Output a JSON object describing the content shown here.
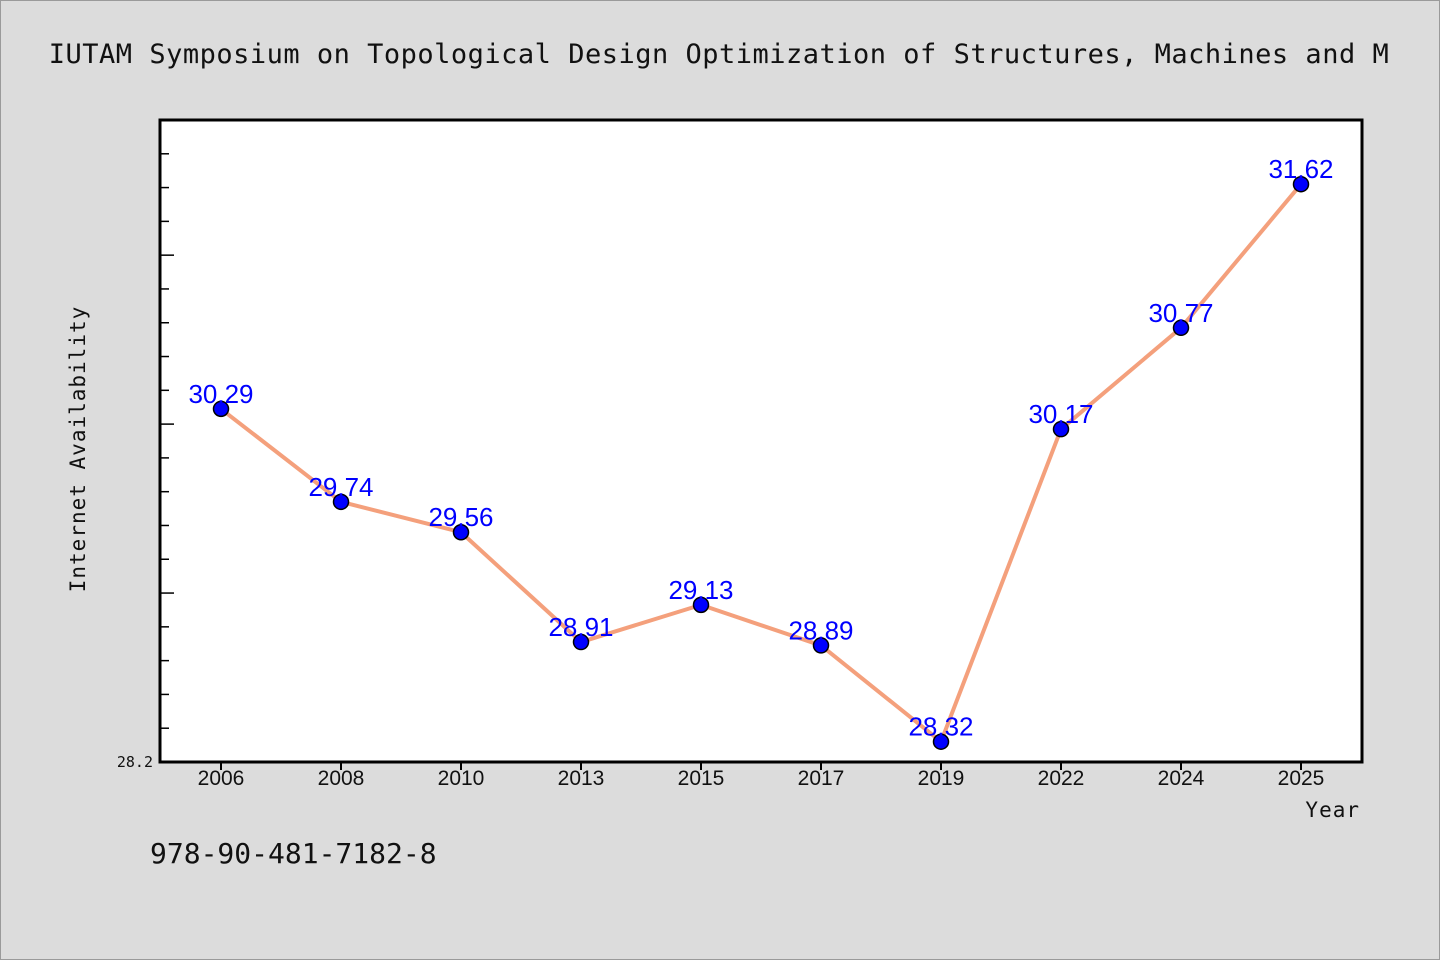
{
  "chart_data": {
    "type": "line",
    "title": "IUTAM Symposium on Topological Design Optimization of Structures, Machines and M",
    "xlabel": "Year",
    "ylabel": "Internet Availability",
    "categories": [
      "2006",
      "2008",
      "2010",
      "2013",
      "2015",
      "2017",
      "2019",
      "2022",
      "2024",
      "2025"
    ],
    "series": [
      {
        "values": [
          30.29,
          29.74,
          29.56,
          28.91,
          29.13,
          28.89,
          28.32,
          30.17,
          30.77,
          31.62
        ]
      }
    ],
    "data_labels": [
      "30.29",
      "29.74",
      "29.56",
      "28.91",
      "29.13",
      "28.89",
      "28.32",
      "30.17",
      "30.77",
      "31.62"
    ],
    "y_min_label": "28.2",
    "ylim": [
      28.2,
      32.0
    ],
    "grid": false,
    "legend": "none",
    "colors": {
      "line": "#f4a07c",
      "marker": "#0000ff",
      "label": "#0000ff",
      "background": "#dcdcdc",
      "plot_background": "#ffffff"
    }
  },
  "footer": {
    "isbn": "978-90-481-7182-8"
  }
}
